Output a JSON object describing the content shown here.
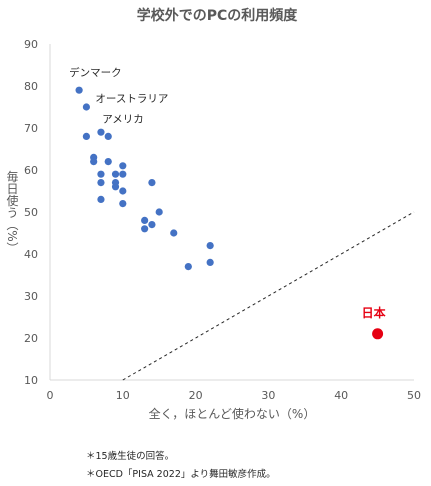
{
  "chart_data": {
    "type": "scatter",
    "title": "学校外でのPCの利用頻度",
    "xlabel": "全く，ほとんど使わない（%）",
    "ylabel": "毎日使う（%）",
    "xlim": [
      0,
      50
    ],
    "ylim": [
      10,
      90
    ],
    "x_ticks": [
      0,
      10,
      20,
      30,
      40,
      50
    ],
    "y_ticks": [
      10,
      20,
      30,
      40,
      50,
      60,
      70,
      80,
      90
    ],
    "grid": false,
    "series": [
      {
        "color": "#4472c4",
        "points": [
          {
            "x": 4,
            "y": 79
          },
          {
            "x": 5,
            "y": 75
          },
          {
            "x": 5,
            "y": 68
          },
          {
            "x": 7,
            "y": 69
          },
          {
            "x": 8,
            "y": 68
          },
          {
            "x": 6,
            "y": 63
          },
          {
            "x": 6,
            "y": 62
          },
          {
            "x": 7,
            "y": 59
          },
          {
            "x": 7,
            "y": 57
          },
          {
            "x": 7,
            "y": 53
          },
          {
            "x": 8,
            "y": 62
          },
          {
            "x": 9,
            "y": 59
          },
          {
            "x": 9,
            "y": 57
          },
          {
            "x": 9,
            "y": 56
          },
          {
            "x": 10,
            "y": 61
          },
          {
            "x": 10,
            "y": 59
          },
          {
            "x": 10,
            "y": 55
          },
          {
            "x": 10,
            "y": 52
          },
          {
            "x": 14,
            "y": 57
          },
          {
            "x": 15,
            "y": 50
          },
          {
            "x": 13,
            "y": 48
          },
          {
            "x": 14,
            "y": 47
          },
          {
            "x": 13,
            "y": 46
          },
          {
            "x": 17,
            "y": 45
          },
          {
            "x": 19,
            "y": 37
          },
          {
            "x": 22,
            "y": 42
          },
          {
            "x": 22,
            "y": 38
          }
        ]
      },
      {
        "color": "#e60012",
        "points": [
          {
            "x": 45,
            "y": 21
          }
        ]
      }
    ],
    "reference_line": {
      "style": "dashed",
      "from": {
        "x": 10,
        "y": 10
      },
      "to": {
        "x": 50,
        "y": 50
      }
    },
    "annotations": [
      {
        "text": "デンマーク",
        "x": 4,
        "y": 79
      },
      {
        "text": "オーストラリア",
        "x": 5,
        "y": 75
      },
      {
        "text": "アメリカ",
        "x": 8,
        "y": 68
      },
      {
        "text": "日本",
        "x": 45,
        "y": 21
      }
    ]
  },
  "notes": [
    "＊15歳生徒の回答。",
    "＊OECD「PISA 2022」より舞田敏彦作成。"
  ]
}
